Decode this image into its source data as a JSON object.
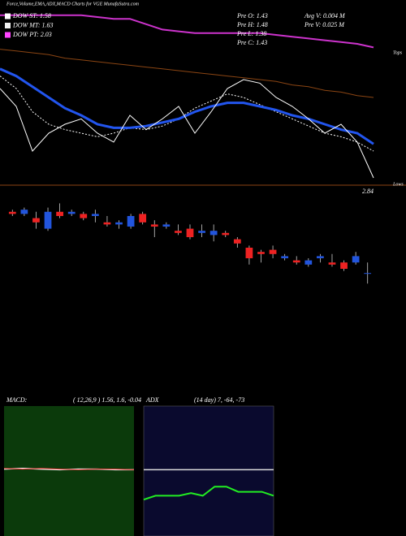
{
  "header": {
    "title": "Force,Volume,EMA,ADX,MACD Charts for VGE MunafaSutra.com"
  },
  "chart_data": [
    {
      "type": "line",
      "ylim": [
        0,
        100
      ],
      "legend": [
        {
          "label": "DOW ST: 1.58",
          "color": "#ffffff"
        },
        {
          "label": "DOW MT: 1.63",
          "color": "#f0f0f0"
        },
        {
          "label": "DOW PT: 2.03",
          "color": "#ff44ff"
        }
      ],
      "info": [
        "Pre  O: 1.43",
        "Pre  H: 1.48",
        "Pre  L: 1.38",
        "Pre  C: 1.43",
        "Avg  V: 0.004  M",
        "Pre  V: 0.025  M"
      ],
      "annotations": {
        "tops": "Tops",
        "lows": "Lows",
        "price": "2.84"
      },
      "categories": [
        null,
        null,
        null,
        null,
        null,
        null,
        null,
        null,
        null,
        null,
        null,
        null,
        null,
        null,
        null,
        null,
        null,
        null,
        null,
        null,
        null,
        null,
        null,
        null
      ],
      "series": [
        {
          "color": "#cc33cc",
          "width": 2,
          "values": [
            96,
            96,
            96,
            96,
            96,
            96,
            95,
            94,
            94,
            91,
            88,
            87,
            86,
            86,
            86,
            86,
            86,
            85,
            84,
            83,
            82,
            81,
            80,
            78
          ]
        },
        {
          "color": "#8b4513",
          "width": 1,
          "values": [
            77,
            76,
            75,
            74,
            72,
            71,
            70,
            69,
            68,
            67,
            66,
            65,
            64,
            63,
            62,
            61,
            60,
            59,
            57,
            56,
            54,
            53,
            51,
            50
          ]
        },
        {
          "color": "#ffffff",
          "width": 1,
          "dashed": true,
          "values": [
            62,
            55,
            42,
            35,
            32,
            30,
            28,
            30,
            33,
            32,
            34,
            38,
            44,
            48,
            52,
            50,
            46,
            42,
            38,
            34,
            30,
            28,
            25,
            20
          ]
        },
        {
          "color": "#2255ee",
          "width": 3,
          "values": [
            66,
            62,
            56,
            50,
            44,
            40,
            35,
            33,
            33,
            34,
            36,
            38,
            42,
            45,
            47,
            47,
            45,
            43,
            40,
            38,
            35,
            32,
            30,
            24
          ]
        },
        {
          "color": "#ffffff",
          "width": 1,
          "values": [
            55,
            45,
            20,
            30,
            35,
            38,
            30,
            25,
            40,
            32,
            38,
            45,
            30,
            42,
            55,
            60,
            58,
            50,
            45,
            38,
            30,
            35,
            25,
            5
          ]
        }
      ]
    },
    {
      "type": "candlestick",
      "ylim": [
        1.3,
        1.8
      ],
      "up_color": "#2255dd",
      "down_color": "#ee2222",
      "categories": [
        null,
        null,
        null,
        null,
        null,
        null,
        null,
        null,
        null,
        null,
        null,
        null,
        null,
        null,
        null,
        null,
        null,
        null,
        null,
        null,
        null,
        null,
        null,
        null,
        null,
        null,
        null,
        null,
        null,
        null,
        null
      ],
      "open": [
        1.72,
        1.71,
        1.69,
        1.64,
        1.72,
        1.71,
        1.71,
        1.7,
        1.67,
        1.66,
        1.65,
        1.71,
        1.66,
        1.65,
        1.63,
        1.64,
        1.62,
        1.61,
        1.62,
        1.59,
        1.55,
        1.53,
        1.54,
        1.5,
        1.49,
        1.47,
        1.5,
        1.48,
        1.48,
        1.48,
        1.43
      ],
      "high": [
        1.73,
        1.74,
        1.72,
        1.74,
        1.76,
        1.73,
        1.72,
        1.73,
        1.7,
        1.68,
        1.71,
        1.72,
        1.68,
        1.67,
        1.66,
        1.66,
        1.66,
        1.66,
        1.63,
        1.6,
        1.56,
        1.54,
        1.56,
        1.52,
        1.51,
        1.5,
        1.52,
        1.52,
        1.49,
        1.53,
        1.48
      ],
      "low": [
        1.7,
        1.7,
        1.64,
        1.63,
        1.69,
        1.7,
        1.68,
        1.67,
        1.65,
        1.64,
        1.64,
        1.66,
        1.6,
        1.64,
        1.61,
        1.59,
        1.6,
        1.58,
        1.6,
        1.55,
        1.47,
        1.48,
        1.5,
        1.49,
        1.47,
        1.46,
        1.48,
        1.46,
        1.44,
        1.47,
        1.38
      ],
      "close": [
        1.71,
        1.73,
        1.67,
        1.72,
        1.7,
        1.72,
        1.69,
        1.71,
        1.66,
        1.67,
        1.7,
        1.67,
        1.65,
        1.66,
        1.62,
        1.6,
        1.63,
        1.63,
        1.61,
        1.57,
        1.5,
        1.52,
        1.52,
        1.51,
        1.48,
        1.49,
        1.51,
        1.47,
        1.45,
        1.51,
        1.43
      ]
    },
    {
      "type": "line",
      "label": "MACD:",
      "params": "( 12,26,9 ) 1.56, 1.6, -0.04",
      "background": "#0b3a0b",
      "ylim": [
        -10,
        10
      ],
      "categories": [
        null,
        null,
        null,
        null,
        null,
        null,
        null,
        null
      ],
      "series": [
        {
          "color": "#ffffff",
          "width": 1.5,
          "values": [
            0.3,
            0.4,
            0.3,
            0.2,
            0.3,
            0.3,
            0.2,
            0.2
          ]
        },
        {
          "color": "#ee3333",
          "width": 1,
          "values": [
            0.4,
            0.3,
            0.4,
            0.3,
            0.2,
            0.3,
            0.3,
            0.2
          ]
        }
      ]
    },
    {
      "type": "line",
      "label": "ADX",
      "params": "(14  day) 7, -64, -73",
      "background": "#0a0a2e",
      "ylim": [
        0,
        100
      ],
      "categories": [
        null,
        null,
        null,
        null,
        null,
        null,
        null,
        null,
        null,
        null,
        null,
        null
      ],
      "series": [
        {
          "color": "#dddddd",
          "width": 1.5,
          "values": [
            51,
            51,
            51,
            51,
            51,
            51,
            51,
            51,
            51,
            51,
            51,
            51
          ]
        },
        {
          "color": "#22ee22",
          "width": 2,
          "values": [
            28,
            31,
            31,
            31,
            33,
            31,
            38,
            38,
            34,
            34,
            34,
            31
          ]
        }
      ]
    }
  ]
}
